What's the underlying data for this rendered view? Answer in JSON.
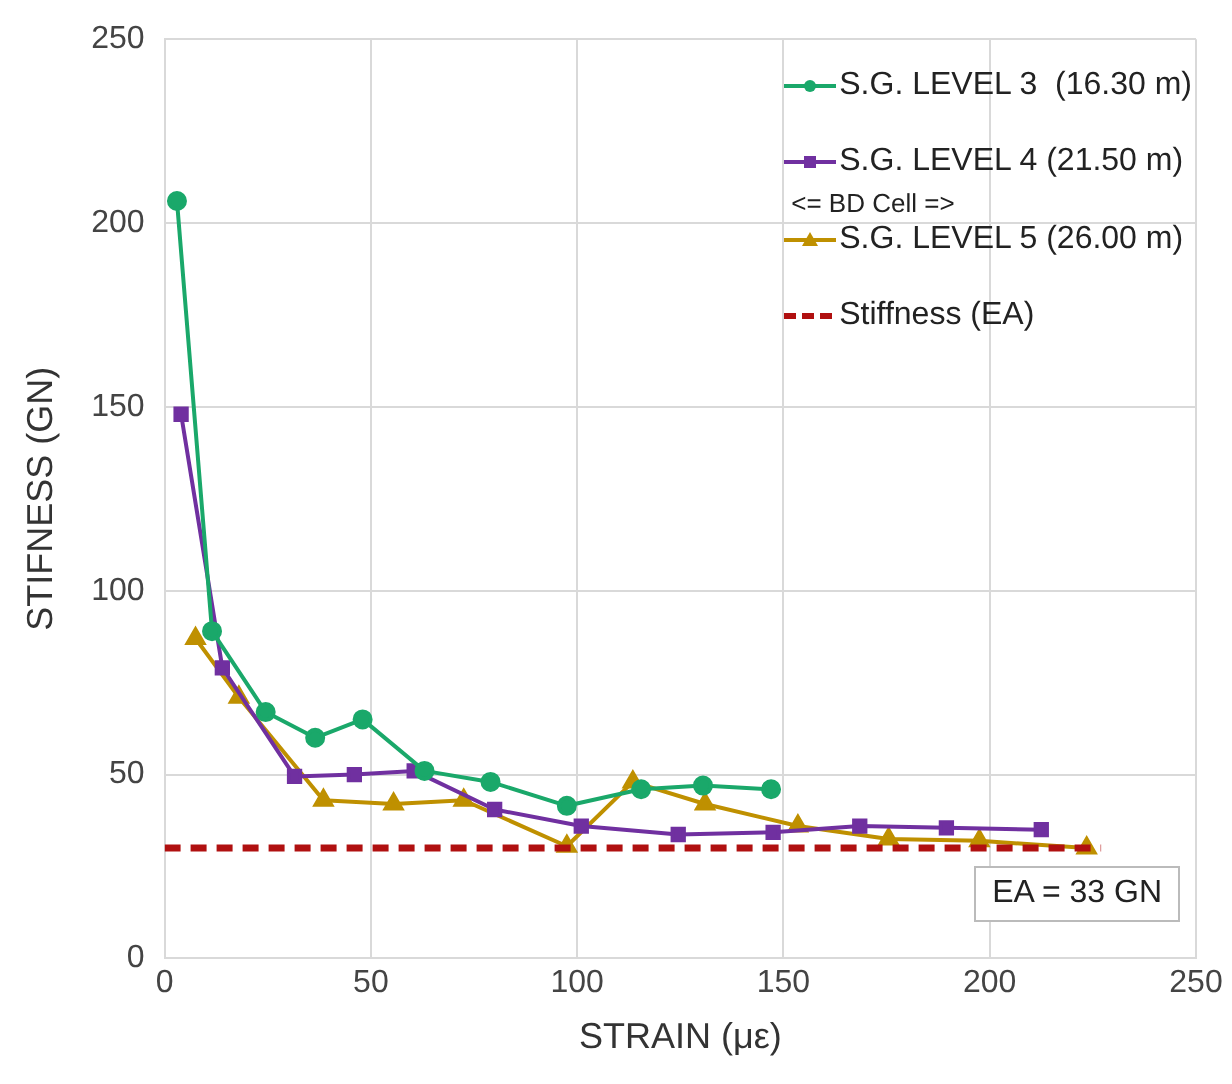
{
  "chart_data": {
    "type": "line",
    "xlabel": "STRAIN (με)",
    "ylabel": "STIFNESS (GN)",
    "xlim": [
      0,
      250
    ],
    "xticks": [
      0,
      50,
      100,
      150,
      200,
      250
    ],
    "ylim": [
      0,
      250
    ],
    "yticks": [
      0,
      50,
      100,
      150,
      200,
      250
    ],
    "grid": true,
    "legend": "top right",
    "line_style": "solid",
    "series": [
      {
        "name": "S.G. LEVEL 3  (16.30 m)",
        "color": "#1aa86a",
        "marker": "circle",
        "x": [
          3,
          11.5,
          24.5,
          36.5,
          48,
          63,
          79,
          97.5,
          115.5,
          130.5,
          147
        ],
        "values": [
          206,
          89,
          67,
          60,
          65,
          51,
          48,
          41.5,
          46,
          47,
          46
        ]
      },
      {
        "name": "S.G. LEVEL 4 (21.50 m)",
        "color": "#7030a0",
        "marker": "square",
        "x": [
          4,
          14,
          31.5,
          46,
          60.5,
          80,
          101,
          124.5,
          147.5,
          168.5,
          189.5,
          212.5
        ],
        "values": [
          148,
          79,
          49.5,
          50,
          51,
          40.5,
          36,
          33.7,
          34.3,
          36,
          35.5,
          35
        ]
      },
      {
        "name": "S.G. LEVEL 5 (26.00 m)",
        "color": "#bf9000",
        "marker": "triangle",
        "x": [
          7.5,
          18,
          38.5,
          55.5,
          72.5,
          97.5,
          113.5,
          131,
          153.5,
          175.5,
          197.5,
          223.5
        ],
        "values": [
          87,
          71,
          43,
          42,
          43,
          30.5,
          48,
          42,
          36,
          32.5,
          32,
          30
        ]
      },
      {
        "name": "Stiffness (EA)",
        "color": "#b01010",
        "marker": "none",
        "line_style": "dashed",
        "x": [
          0,
          227
        ],
        "values": [
          30,
          30
        ]
      }
    ],
    "annotations": [
      "<= BD Cell =>",
      "EA = 33 GN"
    ]
  }
}
